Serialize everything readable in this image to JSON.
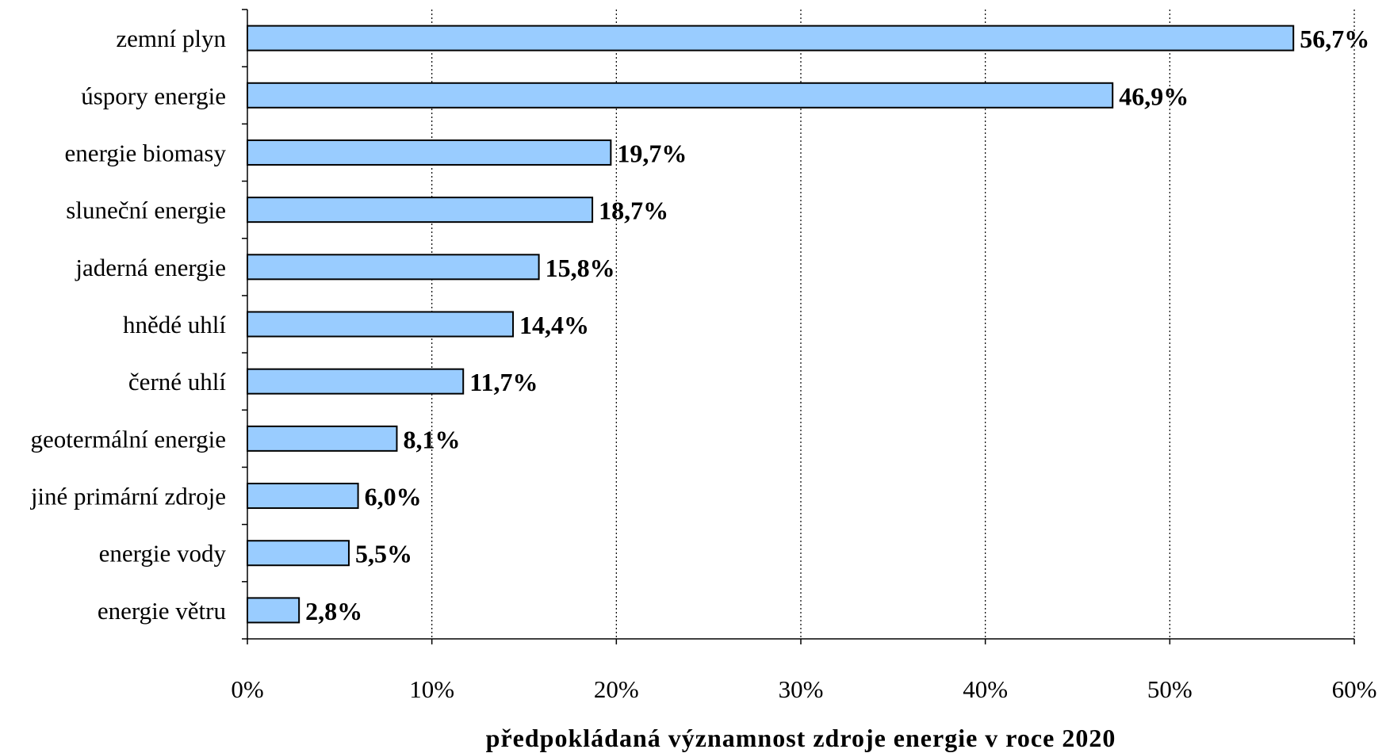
{
  "chart_data": {
    "type": "bar",
    "orientation": "horizontal",
    "categories": [
      "zemní plyn",
      "úspory energie",
      "energie biomasy",
      "sluneční energie",
      "jaderná energie",
      "hnědé uhlí",
      "černé uhlí",
      "geotermální energie",
      "jiné primární zdroje",
      "energie vody",
      "energie větru"
    ],
    "values": [
      56.7,
      46.9,
      19.7,
      18.7,
      15.8,
      14.4,
      11.7,
      8.1,
      6.0,
      5.5,
      2.8
    ],
    "data_labels": [
      "56,7%",
      "46,9%",
      "19,7%",
      "18,7%",
      "15,8%",
      "14,4%",
      "11,7%",
      "8,1%",
      "6,0%",
      "5,5%",
      "2,8%"
    ],
    "xticks": [
      0,
      10,
      20,
      30,
      40,
      50,
      60
    ],
    "xtick_labels": [
      "0%",
      "10%",
      "20%",
      "30%",
      "40%",
      "50%",
      "60%"
    ],
    "xlim": [
      0,
      60
    ],
    "title": "",
    "xlabel": "předpokládaná významnost zdroje energie v roce 2020",
    "ylabel": "",
    "grid": "vertical dotted",
    "legend": "none",
    "bar_color": "#99ccff",
    "bar_edge_color": "#000000"
  }
}
